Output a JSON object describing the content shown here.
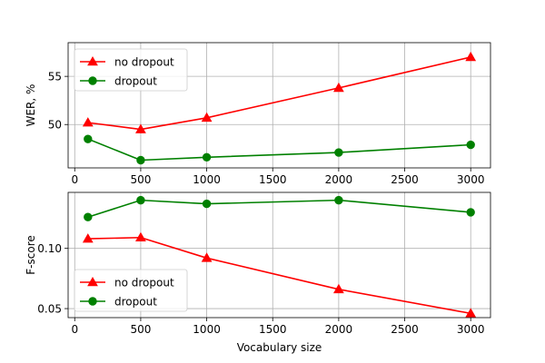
{
  "chart_data": [
    {
      "type": "line",
      "xlabel": "",
      "ylabel": "WER, %",
      "x": [
        100,
        500,
        1000,
        2000,
        3000
      ],
      "xlim": [
        -50,
        3150
      ],
      "ylim": [
        45.5,
        58.5
      ],
      "xticks": [
        0,
        500,
        1000,
        1500,
        2000,
        2500,
        3000
      ],
      "yticks": [
        50,
        55
      ],
      "xtick_labels": [
        "0",
        "500",
        "1000",
        "1500",
        "2000",
        "2500",
        "3000"
      ],
      "ytick_labels": [
        "50",
        "55"
      ],
      "grid": true,
      "legend_position": "upper-left",
      "series": [
        {
          "name": "no dropout",
          "color": "#ff0000",
          "marker": "triangle",
          "values": [
            50.2,
            49.5,
            50.7,
            53.8,
            57.0
          ]
        },
        {
          "name": "dropout",
          "color": "#008000",
          "marker": "circle",
          "values": [
            48.5,
            46.3,
            46.6,
            47.1,
            47.9
          ]
        }
      ]
    },
    {
      "type": "line",
      "xlabel": "Vocabulary size",
      "ylabel": "F-score",
      "x": [
        100,
        500,
        1000,
        2000,
        3000
      ],
      "xlim": [
        -50,
        3150
      ],
      "ylim": [
        0.0425,
        0.1465
      ],
      "xticks": [
        0,
        500,
        1000,
        1500,
        2000,
        2500,
        3000
      ],
      "yticks": [
        0.05,
        0.1
      ],
      "xtick_labels": [
        "0",
        "500",
        "1000",
        "1500",
        "2000",
        "2500",
        "3000"
      ],
      "ytick_labels": [
        "0.05",
        "0.10"
      ],
      "grid": true,
      "legend_position": "lower-left",
      "series": [
        {
          "name": "no dropout",
          "color": "#ff0000",
          "marker": "triangle",
          "values": [
            0.108,
            0.109,
            0.092,
            0.066,
            0.046
          ]
        },
        {
          "name": "dropout",
          "color": "#008000",
          "marker": "circle",
          "values": [
            0.126,
            0.14,
            0.137,
            0.14,
            0.13
          ]
        }
      ]
    }
  ]
}
